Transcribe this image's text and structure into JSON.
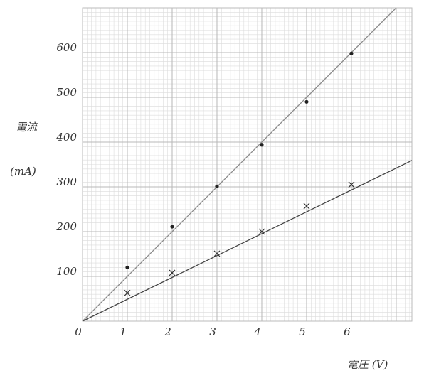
{
  "chart_data": {
    "type": "scatter",
    "x_label": "電圧 (V)",
    "y_label": [
      "電流",
      "(mA)"
    ],
    "xlim": [
      0,
      7.35
    ],
    "ylim": [
      0,
      700
    ],
    "xticks": [
      0,
      1,
      2,
      3,
      4,
      5,
      6
    ],
    "yticks": [
      100,
      200,
      300,
      400,
      500,
      600
    ],
    "grid": true,
    "series": [
      {
        "marker": "dot",
        "color": "#222222",
        "x": [
          1,
          2,
          3,
          4,
          5,
          6
        ],
        "values": [
          120,
          211,
          301,
          394,
          490,
          598
        ]
      },
      {
        "marker": "cross",
        "color": "#333333",
        "x": [
          1,
          2,
          3,
          4,
          5,
          6
        ],
        "values": [
          63,
          108,
          151,
          200,
          257,
          305
        ]
      },
      {
        "marker": "line",
        "color": "#8a8a8a",
        "x": [
          0,
          7
        ],
        "values": [
          0,
          700
        ]
      },
      {
        "marker": "line",
        "color": "#444444",
        "x": [
          0,
          7.35
        ],
        "values": [
          0,
          359
        ]
      }
    ]
  }
}
